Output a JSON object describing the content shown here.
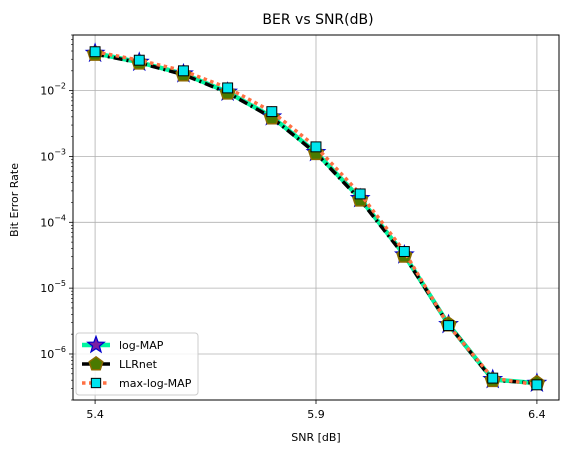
{
  "chart_data": {
    "type": "line",
    "title": "BER vs SNR(dB)",
    "xlabel": "SNR [dB]",
    "ylabel": "Bit Error Rate",
    "xscale": "linear",
    "yscale": "log",
    "xlim": [
      5.35,
      6.45
    ],
    "ylim": [
      2e-07,
      0.07
    ],
    "xticks": [
      5.4,
      5.9,
      6.4
    ],
    "xtick_labels": [
      "5.4",
      "5.9",
      "6.4"
    ],
    "yticks": [
      1e-06,
      1e-05,
      0.0001,
      0.001,
      0.01
    ],
    "ytick_labels": [
      {
        "base": "10",
        "exp": "−6"
      },
      {
        "base": "10",
        "exp": "−5"
      },
      {
        "base": "10",
        "exp": "−4"
      },
      {
        "base": "10",
        "exp": "−3"
      },
      {
        "base": "10",
        "exp": "−2"
      }
    ],
    "grid": true,
    "legend_position": "lower-left",
    "x": [
      5.4,
      5.5,
      5.6,
      5.7,
      5.8,
      5.9,
      6.0,
      6.1,
      6.2,
      6.3,
      6.4
    ],
    "series": [
      {
        "name": "log-MAP",
        "color": "#00f5a0",
        "style": "solid",
        "marker": "star",
        "marker_face": "#7b1fa2",
        "marker_edge": "#0000cc",
        "values": [
          0.037,
          0.027,
          0.018,
          0.0095,
          0.004,
          0.00115,
          0.00023,
          3.2e-05,
          2.8e-06,
          4.1e-07,
          3.6e-07
        ]
      },
      {
        "name": "LLRnet",
        "color": "#000000",
        "style": "dashdot",
        "marker": "pentagon",
        "marker_face": "#4a7a00",
        "marker_edge": "#8a6a00",
        "values": [
          0.036,
          0.0265,
          0.0175,
          0.0093,
          0.0039,
          0.00112,
          0.00022,
          3.1e-05,
          2.8e-06,
          4e-07,
          3.6e-07
        ]
      },
      {
        "name": "max-log-MAP",
        "color": "#ff7043",
        "style": "dotted",
        "marker": "square",
        "marker_face": "#00e5ee",
        "marker_edge": "#000000",
        "values": [
          0.039,
          0.029,
          0.02,
          0.011,
          0.0048,
          0.0014,
          0.00027,
          3.6e-05,
          2.7e-06,
          4.3e-07,
          3.4e-07
        ]
      }
    ]
  }
}
